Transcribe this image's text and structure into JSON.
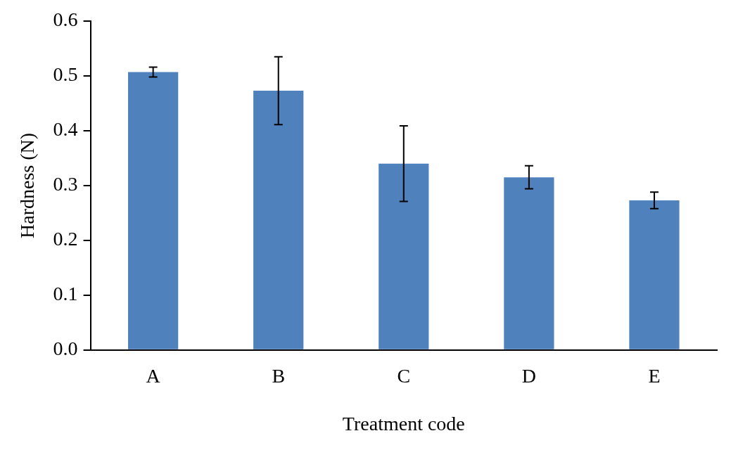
{
  "chart_data": {
    "type": "bar",
    "xlabel": "Treatment code",
    "ylabel": "Hardness (N)",
    "categories": [
      "A",
      "B",
      "C",
      "D",
      "E"
    ],
    "values": [
      0.507,
      0.473,
      0.34,
      0.315,
      0.273
    ],
    "errors": [
      0.009,
      0.062,
      0.069,
      0.021,
      0.015
    ],
    "color": "#4f81bd",
    "ylim": [
      0,
      0.6
    ],
    "yticks": [
      {
        "value": 0,
        "label": "0.0"
      },
      0.1,
      0.2,
      0.3,
      0.4,
      0.5,
      0.6
    ],
    "grid": false,
    "legend": false
  }
}
